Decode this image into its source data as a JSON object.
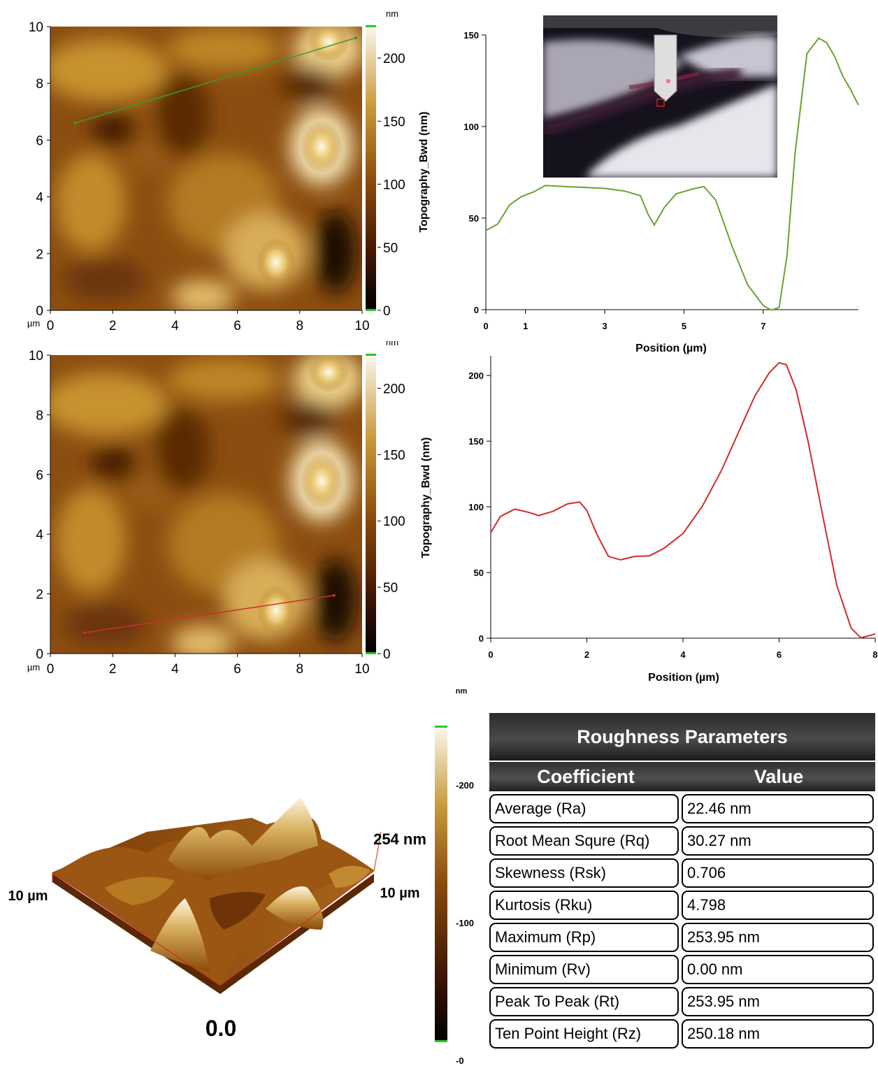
{
  "afm_maps": [
    {
      "id": "top",
      "x_ticks": [
        "0",
        "2",
        "4",
        "6",
        "8",
        "10"
      ],
      "y_ticks": [
        "0",
        "2",
        "4",
        "6",
        "8",
        "10"
      ],
      "unit_label": "µm",
      "colorbar_unit": "nm",
      "colorbar_ticks": [
        "0",
        "50",
        "100",
        "150",
        "200"
      ],
      "colorbar_label": "Topography_Bwd (nm)",
      "scan_line": {
        "color": "#3a9a2e",
        "x1_um": 0.8,
        "y1_um": 6.6,
        "x2_um": 9.8,
        "y2_um": 9.6
      }
    },
    {
      "id": "middle",
      "x_ticks": [
        "0",
        "2",
        "4",
        "6",
        "8",
        "10"
      ],
      "y_ticks": [
        "0",
        "2",
        "4",
        "6",
        "8",
        "10"
      ],
      "unit_label": "µm",
      "colorbar_unit": "nm",
      "colorbar_ticks": [
        "0",
        "50",
        "100",
        "150",
        "200"
      ],
      "colorbar_label": "Topography_Bwd (nm)",
      "scan_line": {
        "color": "#c8302a",
        "x1_um": 1.1,
        "y1_um": 0.7,
        "x2_um": 9.1,
        "y2_um": 1.95
      }
    }
  ],
  "chart_data": [
    {
      "type": "line",
      "title": "",
      "xlabel": "Position (µm)",
      "ylabel": "",
      "x_ticks": [
        "0",
        "1",
        "3",
        "5",
        "7"
      ],
      "y_ticks": [
        "0",
        "50",
        "100",
        "150"
      ],
      "xlim": [
        0,
        9.4
      ],
      "ylim": [
        0,
        150
      ],
      "series": [
        {
          "color": "#6aa32e",
          "x": [
            0,
            0.3,
            0.6,
            0.9,
            1.2,
            1.5,
            2.0,
            2.5,
            3.0,
            3.5,
            3.9,
            4.1,
            4.25,
            4.5,
            4.8,
            5.2,
            5.5,
            5.8,
            6.2,
            6.6,
            7.0,
            7.2,
            7.4,
            7.6,
            7.8,
            8.1,
            8.4,
            8.6,
            8.8,
            9.0,
            9.2,
            9.4
          ],
          "y": [
            43,
            47,
            57,
            62,
            64,
            68,
            67,
            67,
            66,
            65,
            62,
            52,
            46,
            56,
            63,
            66,
            67,
            60,
            35,
            14,
            2,
            0,
            1,
            30,
            85,
            140,
            148,
            146,
            138,
            128,
            120,
            112
          ]
        }
      ]
    },
    {
      "type": "line",
      "title": "",
      "xlabel": "Position (µm)",
      "ylabel": "",
      "x_ticks": [
        "0",
        "2",
        "4",
        "6",
        "8"
      ],
      "y_ticks": [
        "0",
        "50",
        "100",
        "150",
        "200"
      ],
      "xlim": [
        0,
        8
      ],
      "ylim": [
        0,
        215
      ],
      "series": [
        {
          "color": "#d12b2b",
          "x": [
            0,
            0.2,
            0.5,
            0.8,
            1.0,
            1.3,
            1.6,
            1.85,
            2.0,
            2.2,
            2.45,
            2.7,
            3.0,
            3.3,
            3.6,
            4.0,
            4.4,
            4.8,
            5.2,
            5.5,
            5.8,
            6.0,
            6.15,
            6.35,
            6.6,
            6.9,
            7.2,
            7.5,
            7.7,
            7.85,
            8.0
          ],
          "y": [
            80,
            93,
            98,
            96,
            93,
            97,
            102,
            104,
            97,
            80,
            62,
            60,
            62,
            63,
            68,
            80,
            100,
            128,
            160,
            185,
            202,
            210,
            208,
            190,
            150,
            95,
            40,
            8,
            0,
            2,
            3
          ]
        }
      ]
    }
  ],
  "profile_unit_label": "nm",
  "surface_3d": {
    "left_label": "10 µm",
    "right_label": "10 µm",
    "height_label": "254 nm",
    "zero_label": "0.0",
    "colorbar_ticks": [
      "-200",
      "-100",
      "-0"
    ]
  },
  "roughness_table": {
    "title": "Roughness Parameters",
    "col1": "Coefficient",
    "col2": "Value",
    "rows": [
      {
        "name": "Average (Ra)",
        "value": "22.46 nm"
      },
      {
        "name": "Root Mean Squre (Rq)",
        "value": "30.27 nm"
      },
      {
        "name": "Skewness (Rsk)",
        "value": "0.706"
      },
      {
        "name": "Kurtosis (Rku)",
        "value": "4.798"
      },
      {
        "name": "Maximum (Rp)",
        "value": "253.95 nm"
      },
      {
        "name": "Minimum (Rv)",
        "value": "0.00 nm"
      },
      {
        "name": "Peak To Peak (Rt)",
        "value": "253.95 nm"
      },
      {
        "name": "Ten Point Height (Rz)",
        "value": "250.18 nm"
      }
    ]
  },
  "colors": {
    "afm_dark": "#2a0e02",
    "afm_mid": "#8a4a0a",
    "afm_light": "#c99a36",
    "afm_highlight": "#fff6dc"
  }
}
